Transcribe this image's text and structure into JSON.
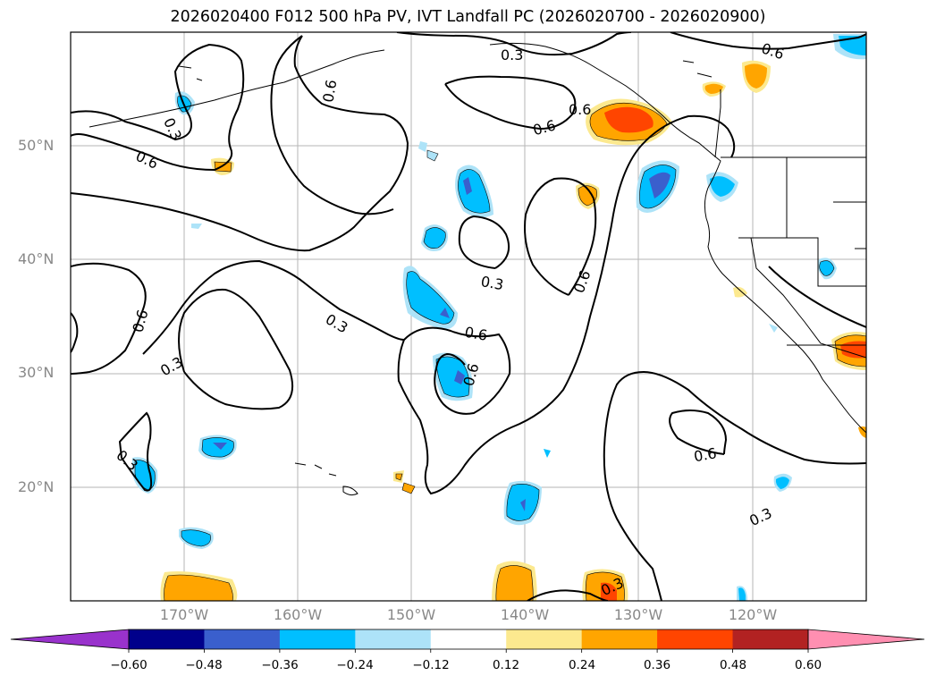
{
  "title": "2026020400 F012 500 hPa PV, IVT Landfall PC (2026020700 - 2026020900)",
  "lat_labels": [
    "50°N",
    "40°N",
    "30°N",
    "20°N"
  ],
  "lon_labels": [
    "170°W",
    "160°W",
    "150°W",
    "140°W",
    "130°W",
    "120°W"
  ],
  "contour_labels": [
    "0.3",
    "0.6",
    "0.3",
    "0.6",
    "0.6",
    "0.6",
    "0.6",
    "0.3",
    "0.6",
    "0.3",
    "0.6",
    "0.3",
    "0.6",
    "0.6",
    "0.3",
    "0.6",
    "0.3",
    "0.3"
  ],
  "colorbar": {
    "ticks": [
      "−0.60",
      "−0.48",
      "−0.36",
      "−0.24",
      "−0.12",
      "0.12",
      "0.24",
      "0.36",
      "0.48",
      "0.60"
    ],
    "colors": [
      "#9932CC",
      "#00008B",
      "#3A5FCD",
      "#00BFFF",
      "#ADE3F8",
      "#FFFFFF",
      "#FCE98F",
      "#FFA500",
      "#FF4500",
      "#B22222",
      "#FF8FB1"
    ]
  }
}
